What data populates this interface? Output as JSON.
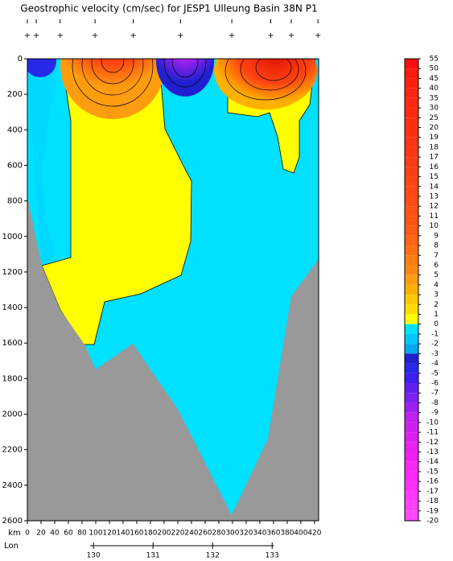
{
  "chart_data": {
    "type": "contour",
    "title": "Geostrophic velocity (cm/sec) for JESP1 Ulleung Basin 38N P1",
    "x_label": "km",
    "xlim": [
      0,
      426
    ],
    "xticks": [
      0,
      20,
      40,
      60,
      80,
      100,
      120,
      140,
      160,
      180,
      200,
      220,
      240,
      260,
      280,
      300,
      320,
      340,
      360,
      380,
      400,
      420
    ],
    "ylim": [
      0,
      2600
    ],
    "yticks": [
      0,
      200,
      400,
      600,
      800,
      1000,
      1200,
      1400,
      1600,
      1800,
      2000,
      2200,
      2400,
      2600
    ],
    "stations_km": [
      0,
      13,
      48,
      99,
      155,
      224,
      299,
      356,
      386,
      425
    ],
    "lon_axis": {
      "label": "Lon",
      "lim": [
        128.89,
        133.78
      ],
      "ticks": [
        130,
        131,
        132,
        133
      ]
    },
    "colorbar": {
      "levels": [
        55,
        50,
        45,
        40,
        35,
        30,
        25,
        20,
        19,
        18,
        17,
        16,
        15,
        14,
        13,
        12,
        11,
        10,
        9,
        8,
        7,
        6,
        5,
        4,
        3,
        2,
        1,
        0,
        -1,
        -2,
        -3,
        -4,
        -5,
        -6,
        -7,
        -8,
        -9,
        -10,
        -11,
        -12,
        -13,
        -14,
        -15,
        -16,
        -17,
        -18,
        -19,
        -20
      ],
      "colors": [
        "#ff1010",
        "#ff1a10",
        "#ff2010",
        "#ff2410",
        "#ff2810",
        "#ff2c10",
        "#ff3010",
        "#ff3010",
        "#ff3412",
        "#ff3814",
        "#ff3c14",
        "#ff4014",
        "#ff4414",
        "#ff4814",
        "#ff4c14",
        "#ff5014",
        "#ff5414",
        "#ff5a14",
        "#ff6414",
        "#ff7014",
        "#ff7c14",
        "#ff8814",
        "#ff9c10",
        "#ffb000",
        "#ffc800",
        "#ffdc00",
        "#ffff00",
        "#00e0ff",
        "#00c8ff",
        "#00a8f0",
        "#2020d0",
        "#2828e8",
        "#4020f0",
        "#6020f0",
        "#8020f0",
        "#a020f0",
        "#c020f0",
        "#d020f0",
        "#dc20f0",
        "#e820f0",
        "#f020f4",
        "#f828f8",
        "#ff28ff",
        "#ff30ff",
        "#ff38ff",
        "#ff40ff",
        "#ff48ff"
      ]
    }
  }
}
